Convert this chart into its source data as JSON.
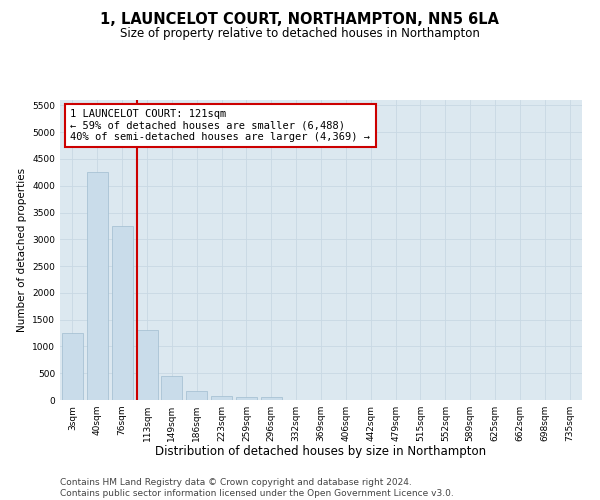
{
  "title": "1, LAUNCELOT COURT, NORTHAMPTON, NN5 6LA",
  "subtitle": "Size of property relative to detached houses in Northampton",
  "xlabel": "Distribution of detached houses by size in Northampton",
  "ylabel": "Number of detached properties",
  "categories": [
    "3sqm",
    "40sqm",
    "76sqm",
    "113sqm",
    "149sqm",
    "186sqm",
    "223sqm",
    "259sqm",
    "296sqm",
    "332sqm",
    "369sqm",
    "406sqm",
    "442sqm",
    "479sqm",
    "515sqm",
    "552sqm",
    "589sqm",
    "625sqm",
    "662sqm",
    "698sqm",
    "735sqm"
  ],
  "bar_values": [
    1250,
    4250,
    3250,
    1300,
    450,
    175,
    75,
    60,
    50,
    0,
    0,
    0,
    0,
    0,
    0,
    0,
    0,
    0,
    0,
    0,
    0
  ],
  "bar_color": "#c9dcea",
  "bar_edge_color": "#a0bdd0",
  "vline_color": "#cc0000",
  "annotation_text": "1 LAUNCELOT COURT: 121sqm\n← 59% of detached houses are smaller (6,488)\n40% of semi-detached houses are larger (4,369) →",
  "annotation_box_color": "#ffffff",
  "annotation_box_edge_color": "#cc0000",
  "ylim": [
    0,
    5600
  ],
  "yticks": [
    0,
    500,
    1000,
    1500,
    2000,
    2500,
    3000,
    3500,
    4000,
    4500,
    5000,
    5500
  ],
  "grid_color": "#c8d8e4",
  "background_color": "#dce8f0",
  "footer_text": "Contains HM Land Registry data © Crown copyright and database right 2024.\nContains public sector information licensed under the Open Government Licence v3.0.",
  "title_fontsize": 10.5,
  "subtitle_fontsize": 8.5,
  "xlabel_fontsize": 8.5,
  "ylabel_fontsize": 7.5,
  "tick_fontsize": 6.5,
  "annotation_fontsize": 7.5,
  "footer_fontsize": 6.5
}
